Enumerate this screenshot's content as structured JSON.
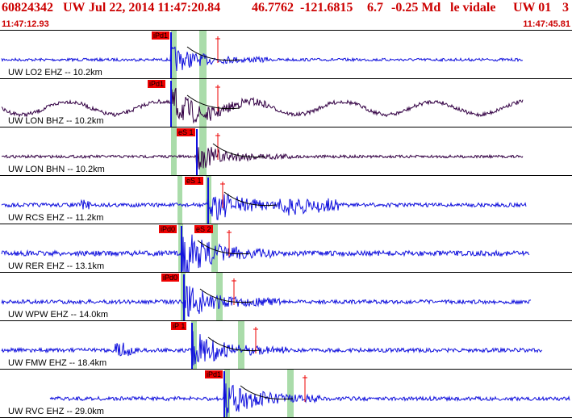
{
  "header": {
    "event_id": "60824342",
    "network": "UW",
    "datetime": "Jul 22, 2014 11:47:20.84",
    "lat": "46.7762",
    "lon": "-121.6815",
    "depth": "6.7",
    "magnitude": "-0.25 Md",
    "author": "le vidale",
    "network_code": "UW 01",
    "count": "3"
  },
  "time_axis": {
    "start": "11:47:12.93",
    "end": "11:47:45.81"
  },
  "colors": {
    "header_text": "#cc0000",
    "trace_blue": "#1010dd",
    "trace_purple": "#330044",
    "pick_red": "#ee0000",
    "window_green": "#aadcaa"
  },
  "channels": [
    {
      "label": "UW LO2 EHZ -- 10.2km",
      "pick": "iPd1",
      "color": "#1010dd",
      "amp": "low",
      "sp": "P"
    },
    {
      "label": "UW LON BHZ -- 10.2km",
      "pick": "iPd1",
      "color": "#330044",
      "amp": "long",
      "sp": "P"
    },
    {
      "label": "UW LON BHN -- 10.2km",
      "pick": "eS 1",
      "color": "#330044",
      "amp": "low",
      "sp": "S"
    },
    {
      "label": "UW RCS EHZ -- 11.2km",
      "pick": "eS 1",
      "color": "#1010dd",
      "amp": "mid",
      "sp": "S"
    },
    {
      "label": "UW RER EHZ -- 13.1km",
      "pick": "iPd0",
      "pick2": "eS 2",
      "color": "#1010dd",
      "amp": "high",
      "sp": "P"
    },
    {
      "label": "UW WPW EHZ -- 14.0km",
      "pick": "iPd0",
      "color": "#1010dd",
      "amp": "mid",
      "sp": "P"
    },
    {
      "label": "UW FMW EHZ -- 18.4km",
      "pick": "iP 1",
      "color": "#1010dd",
      "amp": "mid",
      "sp": "P"
    },
    {
      "label": "UW RVC EHZ -- 29.0km",
      "pick": "iPd1",
      "color": "#1010dd",
      "amp": "mid",
      "sp": "P"
    }
  ]
}
